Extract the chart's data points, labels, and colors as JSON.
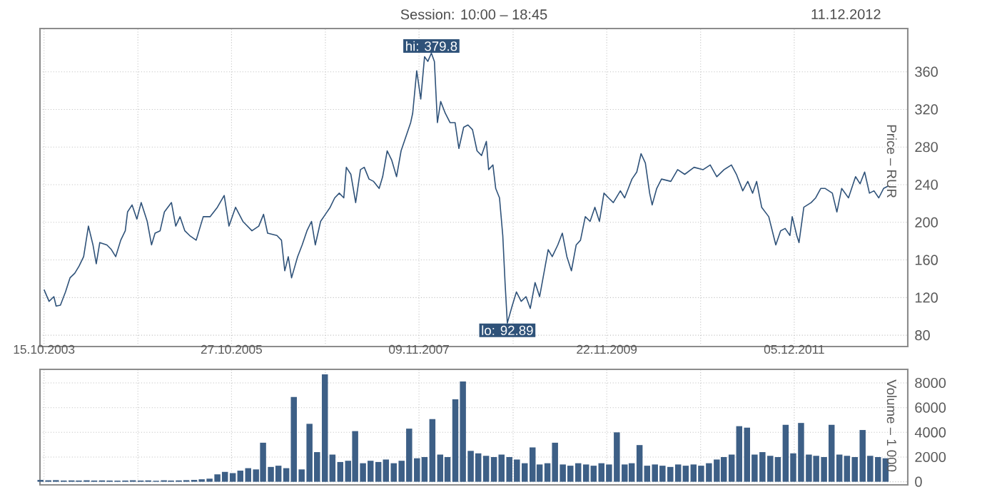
{
  "chart_data": [
    {
      "type": "line",
      "ylabel": "Price – RUR",
      "grid": true,
      "annotations": [
        "Session: 10:00 – 18:45",
        "11.12.2012",
        {
          "text": "hi: 379.8",
          "x": "2007-12-28",
          "y": 379.8
        },
        {
          "text": "lo: 92.89",
          "x": "2008-10-24",
          "y": 92.89
        }
      ],
      "xlim": [
        "2003-09-29",
        "2013-02-27"
      ],
      "ylim": [
        68,
        406
      ],
      "xticks": [
        {
          "value": "2003-10-15",
          "label": "15.10.2003"
        },
        {
          "value": "2004-10-21",
          "label": null
        },
        {
          "value": "2005-10-27",
          "label": "27.10.2005"
        },
        {
          "value": "2006-11-03",
          "label": null
        },
        {
          "value": "2007-11-09",
          "label": "09.11.2007"
        },
        {
          "value": "2008-11-16",
          "label": null
        },
        {
          "value": "2009-11-22",
          "label": "22.11.2009"
        },
        {
          "value": "2010-11-29",
          "label": null
        },
        {
          "value": "2011-12-05",
          "label": "05.12.2011"
        }
      ],
      "yticks": [
        80,
        120,
        160,
        200,
        240,
        280,
        320,
        360
      ],
      "series": [
        {
          "color": "#2f5279",
          "x": [
            "2003-10-15",
            "2003-11-04",
            "2003-11-23",
            "2003-12-02",
            "2003-12-19",
            "2004-01-08",
            "2004-01-26",
            "2004-02-14",
            "2004-03-02",
            "2004-03-20",
            "2004-04-08",
            "2004-04-26",
            "2004-05-09",
            "2004-05-23",
            "2004-06-20",
            "2004-07-08",
            "2004-07-25",
            "2004-08-14",
            "2004-09-01",
            "2004-09-10",
            "2004-09-28",
            "2004-10-17",
            "2004-11-03",
            "2004-11-27",
            "2004-12-14",
            "2004-12-28",
            "2005-01-17",
            "2005-02-03",
            "2005-03-03",
            "2005-03-20",
            "2005-04-06",
            "2005-04-25",
            "2005-05-14",
            "2005-06-09",
            "2005-07-07",
            "2005-08-03",
            "2005-09-01",
            "2005-09-28",
            "2005-10-17",
            "2005-11-12",
            "2005-12-11",
            "2006-01-16",
            "2006-02-12",
            "2006-03-03",
            "2006-03-19",
            "2006-04-25",
            "2006-05-13",
            "2006-05-26",
            "2006-06-09",
            "2006-06-22",
            "2006-07-16",
            "2006-08-03",
            "2006-08-22",
            "2006-09-09",
            "2006-09-24",
            "2006-10-15",
            "2006-11-03",
            "2006-11-22",
            "2006-12-10",
            "2006-12-28",
            "2007-01-15",
            "2007-01-25",
            "2007-02-12",
            "2007-03-03",
            "2007-03-22",
            "2007-04-06",
            "2007-04-25",
            "2007-05-13",
            "2007-06-04",
            "2007-06-18",
            "2007-07-06",
            "2007-07-24",
            "2007-08-12",
            "2007-08-30",
            "2007-09-18",
            "2007-10-07",
            "2007-10-15",
            "2007-10-31",
            "2007-11-16",
            "2007-12-01",
            "2007-12-14",
            "2007-12-28",
            "2008-01-09",
            "2008-01-21",
            "2008-02-03",
            "2008-02-21",
            "2008-03-11",
            "2008-03-31",
            "2008-04-15",
            "2008-05-04",
            "2008-05-21",
            "2008-06-08",
            "2008-06-26",
            "2008-07-14",
            "2008-08-02",
            "2008-08-11",
            "2008-08-28",
            "2008-09-08",
            "2008-09-23",
            "2008-10-06",
            "2008-10-15",
            "2008-10-24",
            "2008-11-12",
            "2008-11-29",
            "2008-12-18",
            "2009-01-06",
            "2009-01-23",
            "2009-02-11",
            "2009-03-01",
            "2009-03-18",
            "2009-04-04",
            "2009-04-20",
            "2009-05-12",
            "2009-05-30",
            "2009-06-17",
            "2009-07-05",
            "2009-07-24",
            "2009-08-10",
            "2009-08-29",
            "2009-09-17",
            "2009-10-06",
            "2009-10-24",
            "2009-11-11",
            "2009-11-29",
            "2009-12-18",
            "2010-01-15",
            "2010-02-01",
            "2010-03-02",
            "2010-03-21",
            "2010-04-07",
            "2010-04-24",
            "2010-05-11",
            "2010-05-21",
            "2010-06-08",
            "2010-06-27",
            "2010-08-03",
            "2010-08-30",
            "2010-09-27",
            "2010-11-03",
            "2010-12-09",
            "2011-01-06",
            "2011-02-01",
            "2011-03-02",
            "2011-03-31",
            "2011-04-20",
            "2011-05-15",
            "2011-06-04",
            "2011-06-23",
            "2011-07-09",
            "2011-07-29",
            "2011-08-26",
            "2011-09-23",
            "2011-10-12",
            "2011-10-30",
            "2011-11-18",
            "2011-11-27",
            "2011-12-15",
            "2011-12-24",
            "2012-01-12",
            "2012-02-10",
            "2012-02-28",
            "2012-03-19",
            "2012-04-06",
            "2012-05-04",
            "2012-05-22",
            "2012-06-10",
            "2012-07-07",
            "2012-08-04",
            "2012-08-22",
            "2012-09-09",
            "2012-09-28",
            "2012-10-16",
            "2012-11-04",
            "2012-11-23",
            "2012-12-11"
          ],
          "values": [
            128.5,
            116,
            121,
            111,
            112,
            126,
            141,
            146,
            153.5,
            163.5,
            196,
            176,
            156,
            178.5,
            176,
            171,
            163.5,
            181,
            191,
            211,
            218.5,
            203.5,
            221,
            201,
            176,
            188.5,
            191,
            211,
            221,
            196,
            206,
            191,
            186,
            181,
            206,
            206,
            216,
            228.5,
            196,
            216,
            201,
            191,
            196,
            208.5,
            188.5,
            186,
            181,
            148.5,
            163.5,
            141,
            163.5,
            176,
            191,
            201,
            176,
            201,
            208.5,
            216,
            226,
            231,
            226,
            258.5,
            251,
            221,
            256,
            258.5,
            246,
            243.5,
            236,
            248.5,
            276,
            266,
            248.5,
            276,
            291,
            306,
            316,
            361,
            331,
            376,
            371,
            379.8,
            371,
            306,
            328.5,
            316,
            306,
            306,
            278.5,
            301,
            303.5,
            298.5,
            276,
            271,
            286,
            256,
            261,
            236,
            226,
            186,
            136,
            92.89,
            111,
            126,
            116,
            121,
            108.5,
            136,
            121,
            146,
            171,
            163.5,
            176,
            188.5,
            163.5,
            148.5,
            176,
            181,
            206,
            201,
            216,
            201,
            231,
            226,
            221,
            233.5,
            226,
            246,
            253.5,
            273,
            263,
            231,
            218.5,
            236,
            246,
            243.5,
            256,
            251,
            258.5,
            256,
            261,
            248.5,
            256,
            261,
            251,
            233.5,
            243.5,
            231,
            243.5,
            216,
            206,
            176,
            191,
            193.5,
            186,
            206,
            186,
            178.5,
            216,
            221,
            226,
            236,
            236,
            231,
            211,
            236,
            226,
            248.5,
            241,
            253.5,
            231,
            233.5,
            226,
            236,
            238.5
          ]
        }
      ]
    },
    {
      "type": "bar",
      "ylabel": "Volume – 1 000",
      "grid": true,
      "tick_labels": "y",
      "xlim": [
        "2003-09-29",
        "2013-02-27"
      ],
      "ylim": [
        -250,
        9100
      ],
      "xticks": [
        {
          "value": "2003-10-15",
          "label": null
        },
        {
          "value": "2004-10-21",
          "label": null
        },
        {
          "value": "2005-10-27",
          "label": null
        },
        {
          "value": "2006-11-03",
          "label": null
        },
        {
          "value": "2007-11-09",
          "label": null
        },
        {
          "value": "2008-11-16",
          "label": null
        },
        {
          "value": "2009-11-22",
          "label": null
        },
        {
          "value": "2010-11-29",
          "label": null
        },
        {
          "value": "2011-12-05",
          "label": null
        }
      ],
      "yticks": [
        0,
        2000,
        4000,
        6000,
        8000
      ],
      "series": [
        {
          "color": "#3d5f86",
          "x": [
            "2003-10",
            "2003-11",
            "2003-12",
            "2004-01",
            "2004-02",
            "2004-03",
            "2004-04",
            "2004-05",
            "2004-06",
            "2004-07",
            "2004-08",
            "2004-09",
            "2004-10",
            "2004-11",
            "2004-12",
            "2005-01",
            "2005-02",
            "2005-03",
            "2005-04",
            "2005-05",
            "2005-06",
            "2005-07",
            "2005-08",
            "2005-09",
            "2005-10",
            "2005-11",
            "2005-12",
            "2006-01",
            "2006-02",
            "2006-03",
            "2006-04",
            "2006-05",
            "2006-06",
            "2006-07",
            "2006-08",
            "2006-09",
            "2006-10",
            "2006-11",
            "2006-12",
            "2007-01",
            "2007-02",
            "2007-03",
            "2007-04",
            "2007-05",
            "2007-06",
            "2007-07",
            "2007-08",
            "2007-09",
            "2007-10",
            "2007-11",
            "2007-12",
            "2008-01",
            "2008-02",
            "2008-03",
            "2008-04",
            "2008-05",
            "2008-06",
            "2008-07",
            "2008-08",
            "2008-09",
            "2008-10",
            "2008-11",
            "2008-12",
            "2009-01",
            "2009-02",
            "2009-03",
            "2009-04",
            "2009-05",
            "2009-06",
            "2009-07",
            "2009-08",
            "2009-09",
            "2009-10",
            "2009-11",
            "2009-12",
            "2010-01",
            "2010-02",
            "2010-03",
            "2010-04",
            "2010-05",
            "2010-06",
            "2010-07",
            "2010-08",
            "2010-09",
            "2010-10",
            "2010-11",
            "2010-12",
            "2011-01",
            "2011-02",
            "2011-03",
            "2011-04",
            "2011-05",
            "2011-06",
            "2011-07",
            "2011-08",
            "2011-09",
            "2011-10",
            "2011-11",
            "2011-12",
            "2012-01",
            "2012-02",
            "2012-03",
            "2012-04",
            "2012-05",
            "2012-06",
            "2012-07",
            "2012-08",
            "2012-09",
            "2012-10",
            "2012-11",
            "2012-12"
          ],
          "values": [
            150,
            120,
            130,
            100,
            110,
            100,
            120,
            100,
            110,
            100,
            90,
            100,
            120,
            100,
            110,
            80,
            120,
            100,
            110,
            130,
            150,
            200,
            250,
            600,
            800,
            700,
            900,
            1100,
            1000,
            3160,
            1200,
            1300,
            1100,
            6860,
            1000,
            4690,
            2400,
            8690,
            2200,
            1600,
            1700,
            4100,
            1500,
            1700,
            1600,
            1800,
            1500,
            1700,
            4300,
            1900,
            2000,
            5070,
            2200,
            2000,
            6670,
            8120,
            2500,
            2300,
            2100,
            2000,
            2200,
            2000,
            1800,
            1500,
            2780,
            1400,
            1500,
            3160,
            1400,
            1300,
            1500,
            1400,
            1300,
            1500,
            1400,
            4000,
            1400,
            1500,
            2970,
            1300,
            1400,
            1300,
            1200,
            1400,
            1300,
            1400,
            1300,
            1500,
            1800,
            2000,
            2200,
            4500,
            4380,
            2200,
            2400,
            2100,
            2000,
            4610,
            2300,
            4760,
            2200,
            2100,
            2000,
            4610,
            2200,
            2100,
            2000,
            4190,
            2100,
            2000,
            1900
          ]
        }
      ]
    }
  ]
}
